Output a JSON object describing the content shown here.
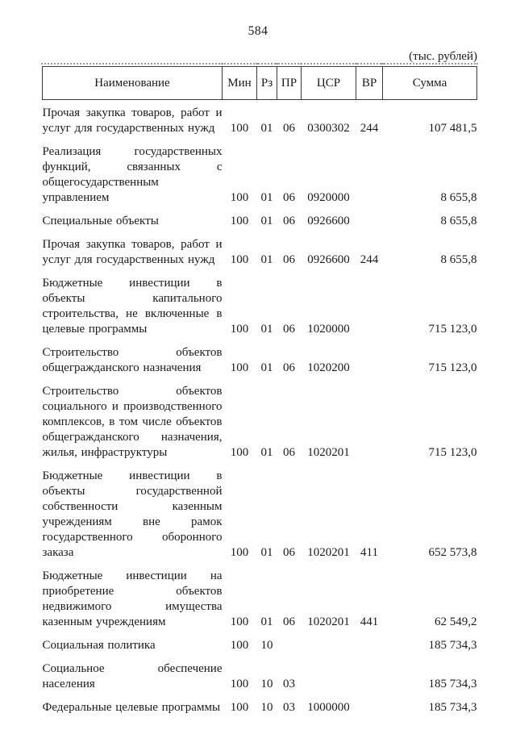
{
  "page": {
    "number": "584",
    "units_note": "(тыс. рублей)"
  },
  "table": {
    "headers": {
      "name": "Наименование",
      "min": "Мин",
      "rz": "Рз",
      "pr": "ПР",
      "csr": "ЦСР",
      "vr": "ВР",
      "sum": "Сумма"
    },
    "rows": [
      {
        "name": "Прочая закупка товаров, работ и услуг для государственных нужд",
        "min": "100",
        "rz": "01",
        "pr": "06",
        "csr": "0300302",
        "vr": "244",
        "sum": "107 481,5"
      },
      {
        "name": "Реализация государственных функций, связанных с общегосударственным управлением",
        "min": "100",
        "rz": "01",
        "pr": "06",
        "csr": "0920000",
        "vr": "",
        "sum": "8 655,8"
      },
      {
        "name": "Специальные объекты",
        "min": "100",
        "rz": "01",
        "pr": "06",
        "csr": "0926600",
        "vr": "",
        "sum": "8 655,8"
      },
      {
        "name": "Прочая закупка товаров, работ и услуг для государственных нужд",
        "min": "100",
        "rz": "01",
        "pr": "06",
        "csr": "0926600",
        "vr": "244",
        "sum": "8 655,8"
      },
      {
        "name": "Бюджетные инвестиции в объекты капитального строительства, не включенные в целевые программы",
        "min": "100",
        "rz": "01",
        "pr": "06",
        "csr": "1020000",
        "vr": "",
        "sum": "715 123,0"
      },
      {
        "name": "Строительство объектов общегражданского назначения",
        "min": "100",
        "rz": "01",
        "pr": "06",
        "csr": "1020200",
        "vr": "",
        "sum": "715 123,0"
      },
      {
        "name": "Строительство объектов социального и производственного комплексов, в том числе объектов общегражданского назначения, жилья, инфраструктуры",
        "min": "100",
        "rz": "01",
        "pr": "06",
        "csr": "1020201",
        "vr": "",
        "sum": "715 123,0"
      },
      {
        "name": "Бюджетные инвестиции в объекты государственной собственности казенным учреждениям вне рамок государственного оборонного заказа",
        "min": "100",
        "rz": "01",
        "pr": "06",
        "csr": "1020201",
        "vr": "411",
        "sum": "652 573,8"
      },
      {
        "name": "Бюджетные инвестиции на приобретение объектов недвижимого имущества казенным учреждениям",
        "min": "100",
        "rz": "01",
        "pr": "06",
        "csr": "1020201",
        "vr": "441",
        "sum": "62 549,2"
      },
      {
        "name": "Социальная политика",
        "min": "100",
        "rz": "10",
        "pr": "",
        "csr": "",
        "vr": "",
        "sum": "185 734,3"
      },
      {
        "name": "Социальное обеспечение населения",
        "min": "100",
        "rz": "10",
        "pr": "03",
        "csr": "",
        "vr": "",
        "sum": "185 734,3"
      },
      {
        "name": "Федеральные целевые программы",
        "min": "100",
        "rz": "10",
        "pr": "03",
        "csr": "1000000",
        "vr": "",
        "sum": "185 734,3"
      }
    ]
  }
}
